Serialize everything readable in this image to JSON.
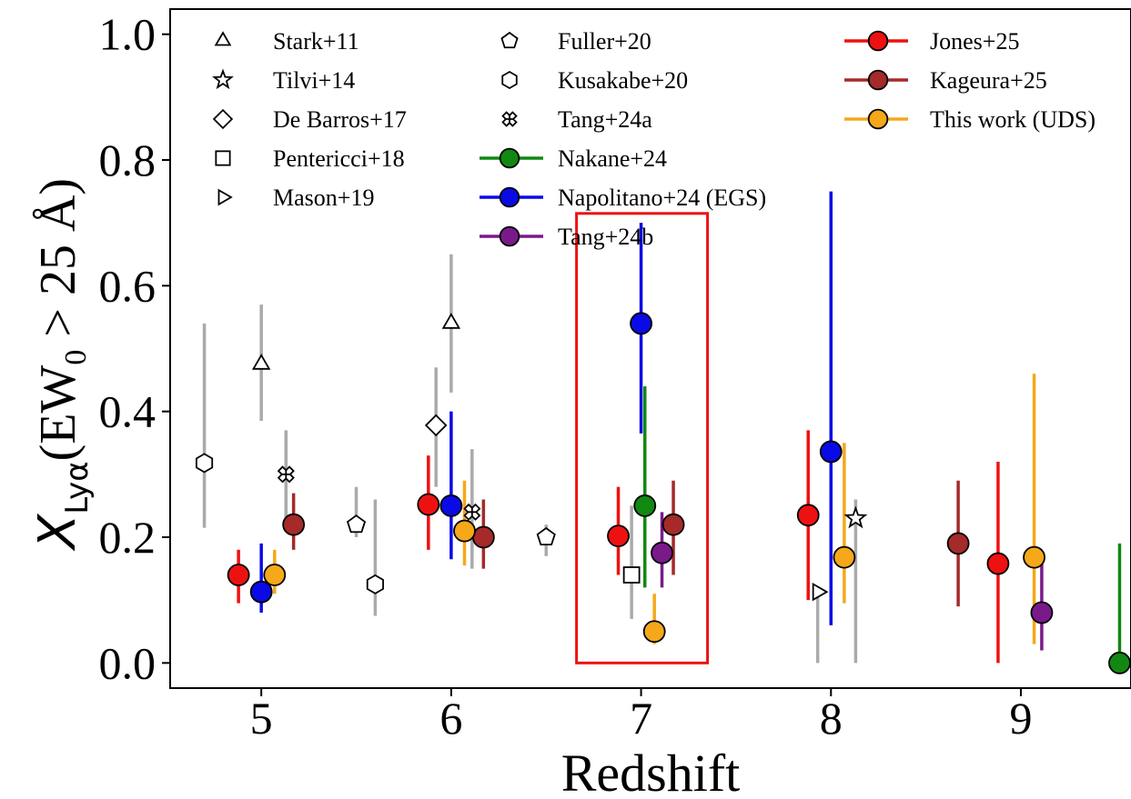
{
  "chart_data": {
    "type": "scatter",
    "xlabel": "Redshift",
    "ylabel_prefix": "X",
    "ylabel_sub": "Lyα",
    "ylabel_paren": "(EW",
    "ylabel_paren_sub": "0",
    "ylabel_rest": " > 25 Å)",
    "xlim": [
      4.52,
      9.58
    ],
    "ylim": [
      -0.04,
      1.04
    ],
    "x_ticks": [
      5,
      6,
      7,
      8,
      9
    ],
    "x_tick_labels": [
      "5",
      "6",
      "7",
      "8",
      "9"
    ],
    "y_ticks": [
      0.0,
      0.2,
      0.4,
      0.6,
      0.8,
      1.0
    ],
    "y_tick_labels": [
      "0.0",
      "0.2",
      "0.4",
      "0.6",
      "0.8",
      "1.0"
    ],
    "grid": false,
    "legend_position": "top",
    "highlight_box": {
      "x": [
        6.66,
        7.35
      ],
      "y": [
        0.0,
        0.715
      ],
      "color": "#ee1111"
    },
    "series": [
      {
        "name": "Stark+11",
        "marker": "triangle-up",
        "line": false,
        "color": "#aaaaaa",
        "points": [
          {
            "x": 5.0,
            "y": 0.475,
            "lo": 0.385,
            "hi": 0.57
          },
          {
            "x": 6.0,
            "y": 0.54,
            "lo": 0.43,
            "hi": 0.65
          }
        ]
      },
      {
        "name": "Tilvi+14",
        "marker": "star",
        "line": false,
        "color": "#aaaaaa",
        "points": [
          {
            "x": 8.13,
            "y": 0.23,
            "lo": 0.0,
            "hi": 0.26
          }
        ]
      },
      {
        "name": "De Barros+17",
        "marker": "diamond",
        "line": false,
        "color": "#aaaaaa",
        "points": [
          {
            "x": 5.92,
            "y": 0.378,
            "lo": 0.28,
            "hi": 0.47
          }
        ]
      },
      {
        "name": "Pentericci+18",
        "marker": "square",
        "line": false,
        "color": "#aaaaaa",
        "points": [
          {
            "x": 6.95,
            "y": 0.14,
            "lo": 0.07,
            "hi": 0.25
          }
        ]
      },
      {
        "name": "Mason+19",
        "marker": "triangle-right",
        "line": false,
        "color": "#aaaaaa",
        "points": [
          {
            "x": 7.93,
            "y": 0.113,
            "lo": 0.0,
            "hi": 0.12
          }
        ]
      },
      {
        "name": "Fuller+20",
        "marker": "pentagon",
        "line": false,
        "color": "#aaaaaa",
        "points": [
          {
            "x": 5.5,
            "y": 0.22,
            "lo": 0.2,
            "hi": 0.28
          },
          {
            "x": 6.5,
            "y": 0.2,
            "lo": 0.17,
            "hi": 0.22
          }
        ]
      },
      {
        "name": "Kusakabe+20",
        "marker": "hexagon",
        "line": false,
        "color": "#aaaaaa",
        "points": [
          {
            "x": 4.7,
            "y": 0.318,
            "lo": 0.215,
            "hi": 0.54
          },
          {
            "x": 5.6,
            "y": 0.125,
            "lo": 0.075,
            "hi": 0.26
          }
        ]
      },
      {
        "name": "Tang+24a",
        "marker": "x-cross",
        "line": false,
        "color": "#aaaaaa",
        "points": [
          {
            "x": 5.13,
            "y": 0.3,
            "lo": 0.23,
            "hi": 0.37
          },
          {
            "x": 6.11,
            "y": 0.24,
            "lo": 0.15,
            "hi": 0.34
          }
        ]
      },
      {
        "name": "Nakane+24",
        "marker": "circle",
        "line": true,
        "color": "#118811",
        "points": [
          {
            "x": 7.02,
            "y": 0.25,
            "lo": 0.12,
            "hi": 0.44
          },
          {
            "x": 9.52,
            "y": 0.0,
            "lo": 0.0,
            "hi": 0.19
          }
        ]
      },
      {
        "name": "Napolitano+24 (EGS)",
        "marker": "circle",
        "line": true,
        "color": "#0a0ae6",
        "points": [
          {
            "x": 5.0,
            "y": 0.113,
            "lo": 0.08,
            "hi": 0.19
          },
          {
            "x": 6.0,
            "y": 0.25,
            "lo": 0.165,
            "hi": 0.4
          },
          {
            "x": 7.0,
            "y": 0.54,
            "lo": 0.365,
            "hi": 0.7
          },
          {
            "x": 8.0,
            "y": 0.336,
            "lo": 0.06,
            "hi": 0.75
          }
        ]
      },
      {
        "name": "Tang+24b",
        "marker": "circle",
        "line": true,
        "color": "#7a1a8a",
        "points": [
          {
            "x": 7.11,
            "y": 0.175,
            "lo": 0.12,
            "hi": 0.24
          },
          {
            "x": 9.11,
            "y": 0.08,
            "lo": 0.02,
            "hi": 0.16
          }
        ]
      },
      {
        "name": "Jones+25",
        "marker": "circle",
        "line": true,
        "color": "#ee1111",
        "points": [
          {
            "x": 4.88,
            "y": 0.14,
            "lo": 0.095,
            "hi": 0.18
          },
          {
            "x": 5.88,
            "y": 0.252,
            "lo": 0.18,
            "hi": 0.33
          },
          {
            "x": 6.88,
            "y": 0.202,
            "lo": 0.14,
            "hi": 0.28
          },
          {
            "x": 7.88,
            "y": 0.235,
            "lo": 0.1,
            "hi": 0.37
          },
          {
            "x": 8.88,
            "y": 0.158,
            "lo": 0.0,
            "hi": 0.32
          }
        ]
      },
      {
        "name": "Kageura+25",
        "marker": "circle",
        "line": true,
        "color": "#a52a2a",
        "points": [
          {
            "x": 5.17,
            "y": 0.22,
            "lo": 0.18,
            "hi": 0.27
          },
          {
            "x": 6.17,
            "y": 0.2,
            "lo": 0.15,
            "hi": 0.26
          },
          {
            "x": 7.17,
            "y": 0.22,
            "lo": 0.14,
            "hi": 0.29
          },
          {
            "x": 8.67,
            "y": 0.19,
            "lo": 0.09,
            "hi": 0.29
          }
        ]
      },
      {
        "name": "This work (UDS)",
        "marker": "circle",
        "line": true,
        "color": "#f5a81a",
        "points": [
          {
            "x": 5.07,
            "y": 0.14,
            "lo": 0.11,
            "hi": 0.18
          },
          {
            "x": 6.07,
            "y": 0.21,
            "lo": 0.155,
            "hi": 0.29
          },
          {
            "x": 7.07,
            "y": 0.05,
            "lo": 0.03,
            "hi": 0.11
          },
          {
            "x": 8.07,
            "y": 0.168,
            "lo": 0.095,
            "hi": 0.35
          },
          {
            "x": 9.07,
            "y": 0.168,
            "lo": 0.03,
            "hi": 0.46
          }
        ]
      }
    ]
  }
}
